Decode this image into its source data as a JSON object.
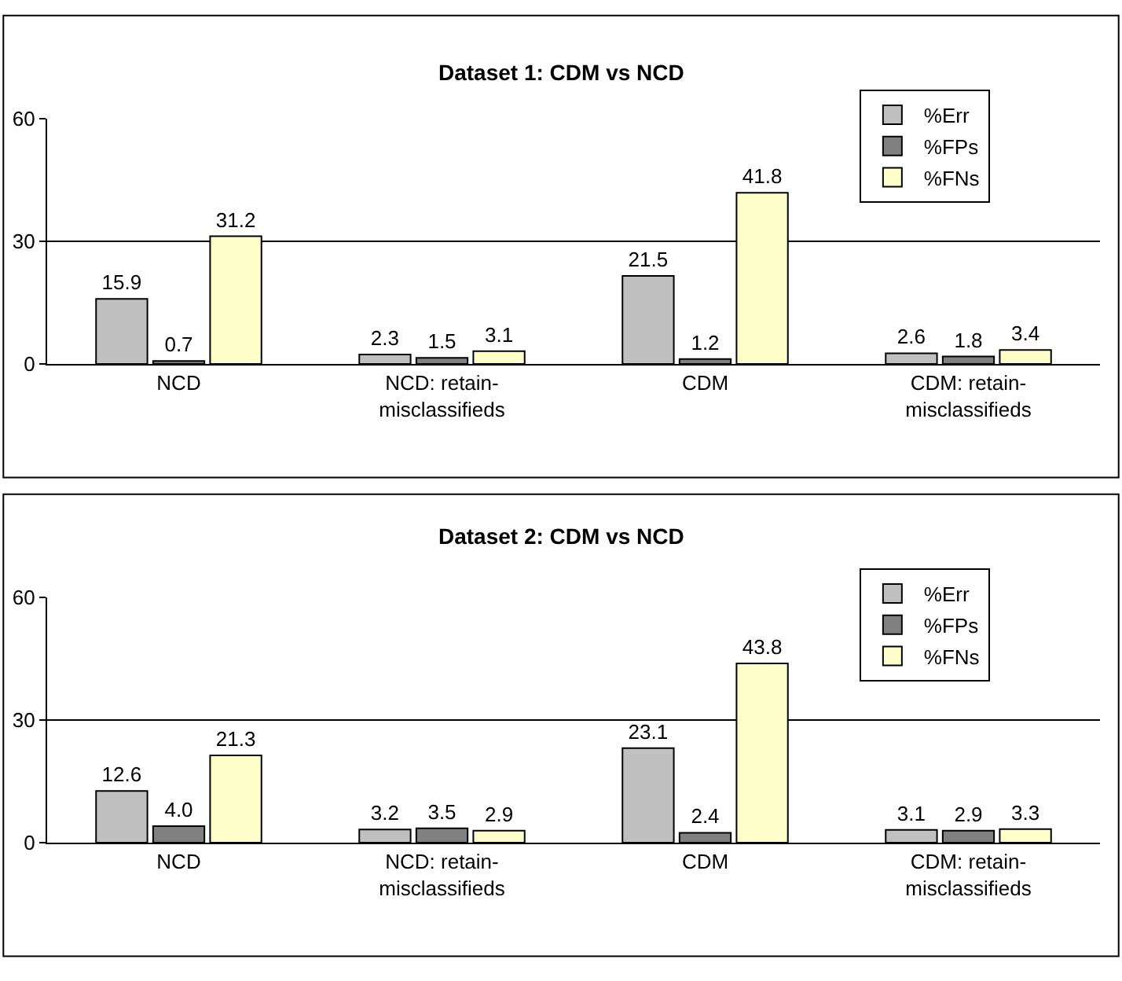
{
  "chart_data": [
    {
      "type": "bar",
      "title": "Dataset 1: CDM vs NCD",
      "categories": [
        "NCD",
        "NCD: retain-misclassifieds",
        "CDM",
        "CDM: retain-misclassifieds"
      ],
      "series": [
        {
          "name": "%Err",
          "color": "#c0c0c0",
          "values": [
            15.9,
            2.3,
            21.5,
            2.6
          ],
          "value_labels": [
            "15.9",
            "2.3",
            "21.5",
            "2.6"
          ]
        },
        {
          "name": "%FPs",
          "color": "#808080",
          "values": [
            0.7,
            1.5,
            1.2,
            1.8
          ],
          "value_labels": [
            "0.7",
            "1.5",
            "1.2",
            "1.8"
          ]
        },
        {
          "name": "%FNs",
          "color": "#ffffcc",
          "values": [
            31.2,
            3.1,
            41.8,
            3.4
          ],
          "value_labels": [
            "31.2",
            "3.1",
            "41.8",
            "3.4"
          ]
        }
      ],
      "ylim": [
        0,
        60
      ],
      "yticks": [
        0,
        30,
        60
      ],
      "grid": "y",
      "legend": "top right"
    },
    {
      "type": "bar",
      "title": "Dataset 2: CDM vs NCD",
      "categories": [
        "NCD",
        "NCD: retain-misclassifieds",
        "CDM",
        "CDM: retain-misclassifieds"
      ],
      "series": [
        {
          "name": "%Err",
          "color": "#c0c0c0",
          "values": [
            12.6,
            3.2,
            23.1,
            3.1
          ],
          "value_labels": [
            "12.6",
            "3.2",
            "23.1",
            "3.1"
          ]
        },
        {
          "name": "%FPs",
          "color": "#808080",
          "values": [
            4.0,
            3.5,
            2.4,
            2.9
          ],
          "value_labels": [
            "4.0",
            "3.5",
            "2.4",
            "2.9"
          ]
        },
        {
          "name": "%FNs",
          "color": "#ffffcc",
          "values": [
            21.3,
            2.9,
            43.8,
            3.3
          ],
          "value_labels": [
            "21.3",
            "2.9",
            "43.8",
            "3.3"
          ]
        }
      ],
      "ylim": [
        0,
        60
      ],
      "yticks": [
        0,
        30,
        60
      ],
      "grid": "y",
      "legend": "top right"
    }
  ]
}
